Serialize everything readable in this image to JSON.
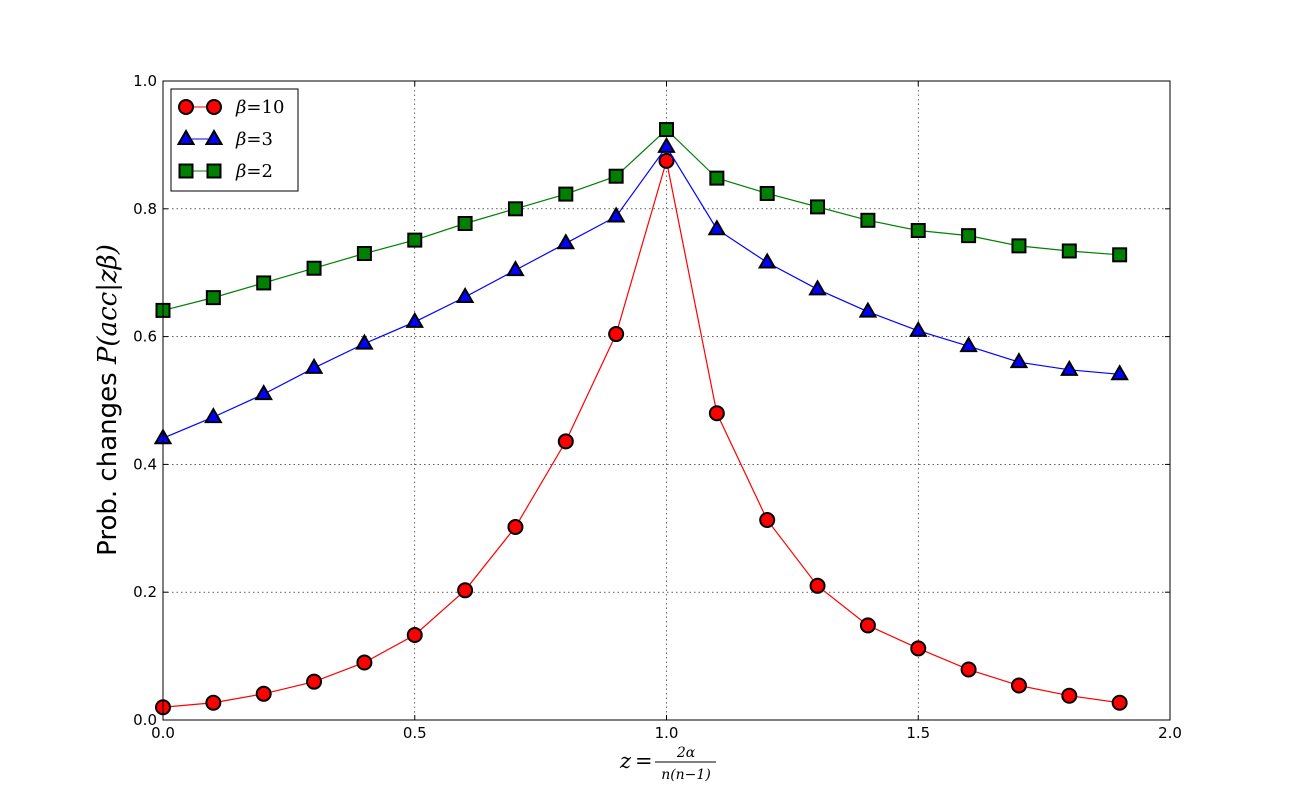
{
  "chart_data": {
    "type": "line",
    "xlim": [
      0.0,
      2.0
    ],
    "ylim": [
      0.0,
      1.0
    ],
    "grid": true,
    "legend_position": "top-left",
    "xticks": [
      "0.0",
      "0.5",
      "1.0",
      "1.5",
      "2.0"
    ],
    "yticks": [
      "0.0",
      "0.2",
      "0.4",
      "0.6",
      "0.8",
      "1.0"
    ],
    "xlabel": {
      "lhs": "z",
      "eq": "=",
      "numerator": "2α",
      "denominator": "n(n−1)"
    },
    "ylabel": {
      "prefix": "Prob. changes ",
      "math": "P(acc|zβ)"
    },
    "x": [
      0.0,
      0.1,
      0.2,
      0.3,
      0.4,
      0.5,
      0.6,
      0.7,
      0.8,
      0.9,
      1.0,
      1.1,
      1.2,
      1.3,
      1.4,
      1.5,
      1.6,
      1.7,
      1.8,
      1.9
    ],
    "series": [
      {
        "name": "β=10",
        "legend_symbol": "β",
        "legend_value": "=10",
        "marker": "circle",
        "color": "#ff0000",
        "line_color": "#ff0000",
        "values": [
          0.02,
          0.027,
          0.041,
          0.06,
          0.09,
          0.133,
          0.203,
          0.302,
          0.436,
          0.604,
          0.875,
          0.48,
          0.313,
          0.21,
          0.148,
          0.112,
          0.079,
          0.054,
          0.038,
          0.027
        ]
      },
      {
        "name": "β=3",
        "legend_symbol": "β",
        "legend_value": "=3",
        "marker": "triangle",
        "color": "#0000ff",
        "line_color": "#0000ff",
        "values": [
          0.441,
          0.474,
          0.51,
          0.551,
          0.589,
          0.623,
          0.662,
          0.704,
          0.746,
          0.788,
          0.897,
          0.768,
          0.716,
          0.674,
          0.639,
          0.609,
          0.585,
          0.56,
          0.548,
          0.541
        ]
      },
      {
        "name": "β=2",
        "legend_symbol": "β",
        "legend_value": "=2",
        "marker": "square",
        "color": "#008000",
        "line_color": "#008000",
        "values": [
          0.641,
          0.661,
          0.684,
          0.707,
          0.73,
          0.751,
          0.777,
          0.8,
          0.823,
          0.851,
          0.924,
          0.848,
          0.824,
          0.803,
          0.782,
          0.766,
          0.758,
          0.742,
          0.734,
          0.728
        ]
      }
    ]
  }
}
